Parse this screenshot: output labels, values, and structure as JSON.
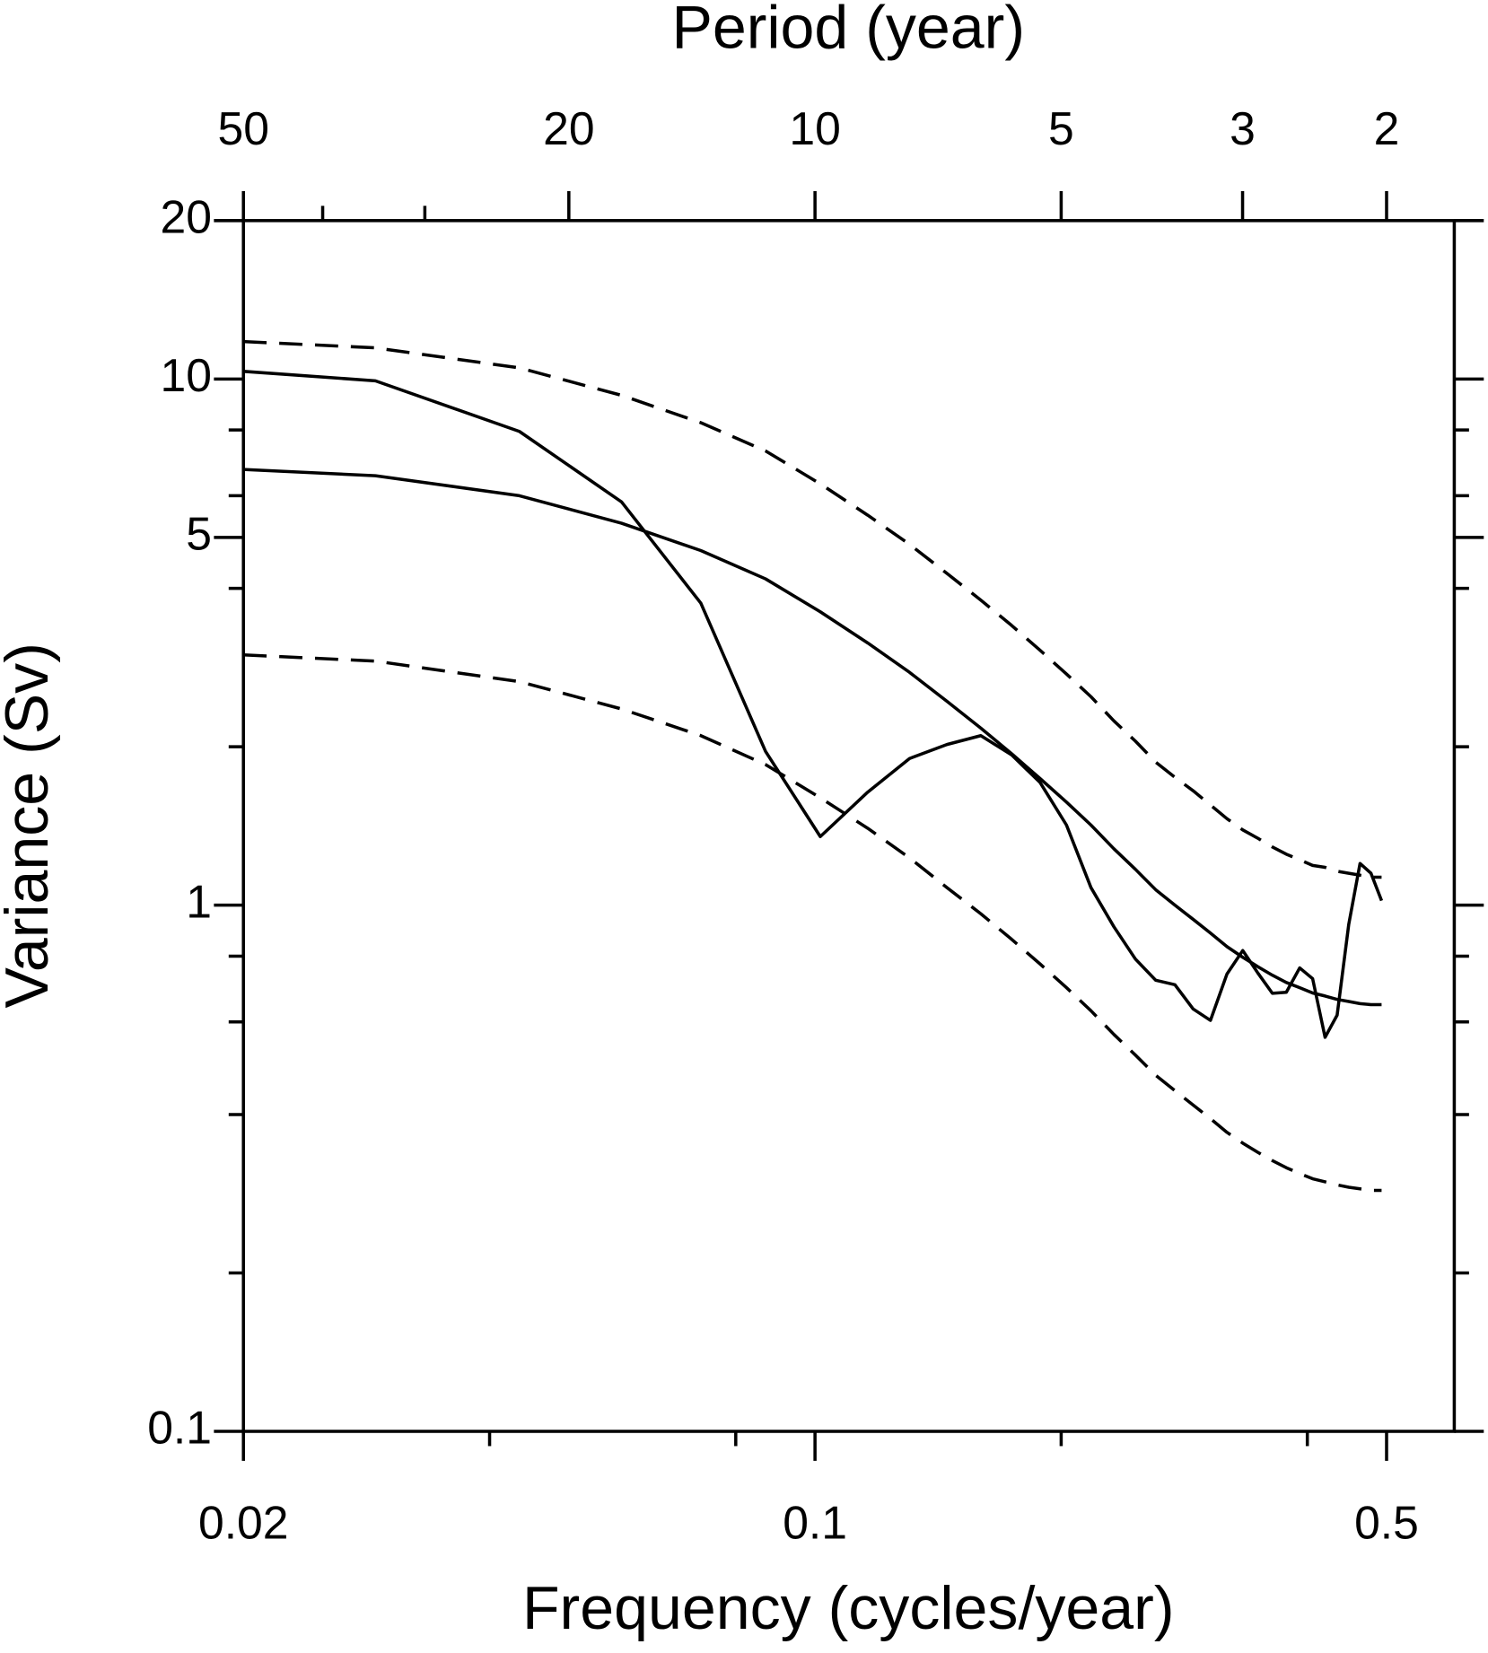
{
  "chart_data": {
    "type": "line",
    "xlabel": "Frequency (cycles/year)",
    "ylabel": "Variance (Sv)",
    "x2label": "Period (year)",
    "xscale": "log",
    "yscale": "log",
    "xlim": [
      0.02,
      0.605
    ],
    "ylim": [
      0.1,
      20
    ],
    "xticks": [
      0.02,
      0.1,
      0.5
    ],
    "xminorticks": [
      0.04,
      0.08,
      0.2,
      0.4
    ],
    "yticks": [
      0.1,
      1,
      5,
      10,
      20
    ],
    "yminorticks": [
      0.2,
      0.4,
      0.6,
      0.8,
      2,
      4,
      6,
      8
    ],
    "x2ticks": [
      50,
      20,
      10,
      5,
      3,
      2
    ],
    "x2minorticks": [
      40,
      30
    ],
    "x": [
      0.02,
      0.029,
      0.0435,
      0.058,
      0.0725,
      0.087,
      0.1015,
      0.116,
      0.1305,
      0.145,
      0.1595,
      0.174,
      0.1885,
      0.203,
      0.2175,
      0.232,
      0.2465,
      0.261,
      0.2755,
      0.29,
      0.3045,
      0.319,
      0.3335,
      0.348,
      0.3625,
      0.377,
      0.3915,
      0.406,
      0.4205,
      0.435,
      0.4495,
      0.464,
      0.4785,
      0.493
    ],
    "series": [
      {
        "color": "#000000",
        "linestyle": "solid",
        "values": [
          10.34,
          9.92,
          7.95,
          5.84,
          3.75,
          1.96,
          1.35,
          1.64,
          1.9,
          2.02,
          2.1,
          1.93,
          1.71,
          1.42,
          1.08,
          0.91,
          0.79,
          0.72,
          0.706,
          0.635,
          0.604,
          0.74,
          0.82,
          0.743,
          0.68,
          0.683,
          0.76,
          0.725,
          0.561,
          0.618,
          0.92,
          1.2,
          1.15,
          1.02
        ]
      },
      {
        "color": "#000000",
        "linestyle": "solid",
        "values": [
          6.73,
          6.55,
          6.0,
          5.32,
          4.72,
          4.17,
          3.61,
          3.15,
          2.77,
          2.44,
          2.17,
          1.94,
          1.74,
          1.57,
          1.42,
          1.28,
          1.17,
          1.07,
          1.0,
          0.94,
          0.885,
          0.834,
          0.796,
          0.764,
          0.736,
          0.713,
          0.697,
          0.681,
          0.672,
          0.662,
          0.656,
          0.65,
          0.647,
          0.647
        ]
      },
      {
        "color": "#000000",
        "linestyle": "dashed",
        "values": [
          11.78,
          11.46,
          10.5,
          9.31,
          8.26,
          7.3,
          6.32,
          5.51,
          4.85,
          4.27,
          3.8,
          3.4,
          3.05,
          2.75,
          2.49,
          2.24,
          2.05,
          1.87,
          1.75,
          1.65,
          1.55,
          1.46,
          1.39,
          1.34,
          1.29,
          1.25,
          1.22,
          1.19,
          1.18,
          1.16,
          1.15,
          1.14,
          1.13,
          1.13
        ]
      },
      {
        "color": "#000000",
        "linestyle": "dashed",
        "values": [
          2.99,
          2.91,
          2.66,
          2.36,
          2.1,
          1.85,
          1.6,
          1.4,
          1.23,
          1.08,
          0.963,
          0.861,
          0.773,
          0.697,
          0.63,
          0.568,
          0.519,
          0.475,
          0.444,
          0.417,
          0.393,
          0.37,
          0.353,
          0.339,
          0.327,
          0.317,
          0.309,
          0.302,
          0.298,
          0.294,
          0.291,
          0.289,
          0.287,
          0.287
        ]
      }
    ]
  }
}
